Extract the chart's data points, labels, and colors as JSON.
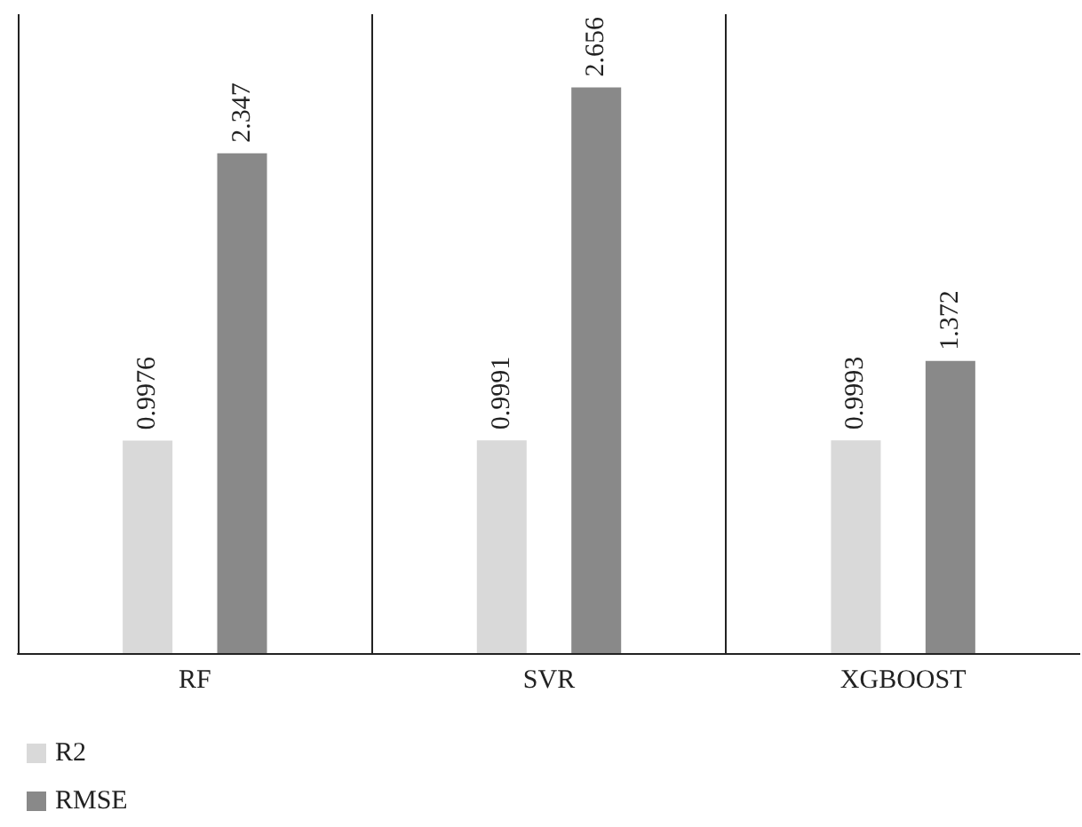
{
  "chart_data": {
    "type": "bar",
    "categories": [
      "RF",
      "SVR",
      "XGBOOST"
    ],
    "series": [
      {
        "name": "R2",
        "color": "#d9d9d9",
        "values": [
          0.9976,
          0.9991,
          0.9993
        ]
      },
      {
        "name": "RMSE",
        "color": "#898989",
        "values": [
          2.347,
          2.656,
          1.372
        ]
      }
    ],
    "data_labels": true,
    "grid": "x",
    "legend": "bottom left",
    "tick_labels": "x"
  }
}
